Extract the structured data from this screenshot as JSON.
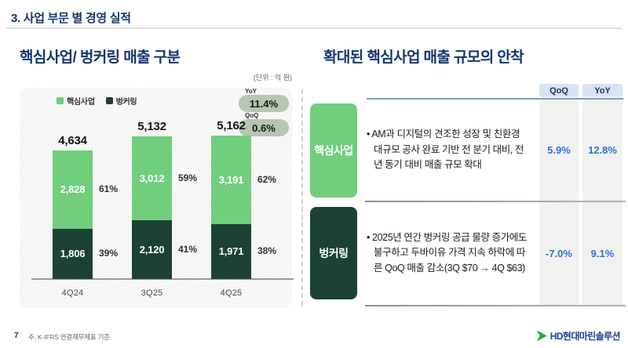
{
  "page": {
    "title": "3. 사업 부문 별 경영 실적",
    "footer_page_number": "7",
    "footer_note": "주. K-IFRS 연결재무제표 기준",
    "logo_text": "HD현대마린솔루션"
  },
  "colors": {
    "title_navy": "#16356e",
    "light_green": "#70ce7d",
    "dark_green": "#1b4233",
    "value_blue": "#2f6fd6",
    "badge_bg": "#b6c6b1",
    "header_line_blue": "#8497c6",
    "logo_green": "#27a83c",
    "logo_blue": "#1b3d91"
  },
  "left_panel": {
    "title": "핵심사업/ 벙커링 매출 구분",
    "unit_label": "(단위 : 억 원)"
  },
  "chart_data": {
    "type": "stacked-bar",
    "title": "핵심사업/ 벙커링 매출 구분",
    "unit": "억 원",
    "categories": [
      "4Q24",
      "3Q25",
      "4Q25"
    ],
    "series": [
      {
        "name": "핵심사업",
        "color_key": "light_green",
        "values": [
          2828,
          3012,
          3191
        ],
        "share_labels": [
          "61%",
          "59%",
          "62%"
        ]
      },
      {
        "name": "벙커링",
        "color_key": "dark_green",
        "values": [
          1806,
          2120,
          1971
        ],
        "share_labels": [
          "39%",
          "41%",
          "38%"
        ]
      }
    ],
    "totals": [
      4634,
      5132,
      5162
    ],
    "badges": [
      {
        "label": "YoY",
        "value": "11.4%"
      },
      {
        "label": "QoQ",
        "value": "0.6%"
      }
    ],
    "legend_position": "top-left",
    "grid": false,
    "ylim": [
      0,
      5500
    ]
  },
  "right_panel": {
    "title": "확대된 핵심사업 매출 규모의 안착",
    "columns": [
      "QoQ",
      "YoY"
    ],
    "rows": [
      {
        "label": "핵심사업",
        "bullet": "• AM과 디지털의 견조한 성장 및 친환경 대규모 공사 완료 기반 전 분기 대비, 전년 동기 대비 매출 규모 확대",
        "qoq": "5.9%",
        "yoy": "12.8%"
      },
      {
        "label": "벙커링",
        "bullet": "• 2025년 연간 벙커링 공급 물량 증가에도 불구하고 두바이유 가격 지속 하락에 따른 QoQ 매출 감소(3Q $70 → 4Q $63)",
        "qoq": "-7.0%",
        "yoy": "9.1%"
      }
    ]
  }
}
